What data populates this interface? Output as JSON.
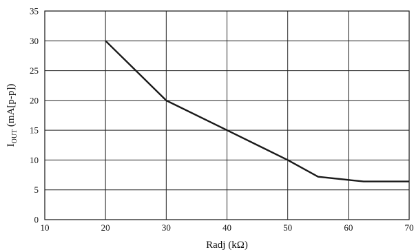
{
  "chart_data": {
    "type": "line",
    "title": "",
    "xlabel": "Radj  (kΩ)",
    "ylabel": {
      "main": "I",
      "subscript": "OUT",
      "unit": "  (mA[p-p])"
    },
    "xlim": [
      10,
      70
    ],
    "ylim": [
      0,
      35
    ],
    "xticks": [
      10,
      20,
      30,
      40,
      50,
      60,
      70
    ],
    "yticks": [
      0,
      5,
      10,
      15,
      20,
      25,
      30,
      35
    ],
    "grid": true,
    "legend": "none",
    "series": [
      {
        "color": "#1a1a1a",
        "x": [
          20,
          25,
          30,
          40,
          50,
          55,
          62.5,
          70
        ],
        "y": [
          30,
          25,
          20,
          15,
          10,
          7.2,
          6.4,
          6.4
        ]
      }
    ]
  }
}
